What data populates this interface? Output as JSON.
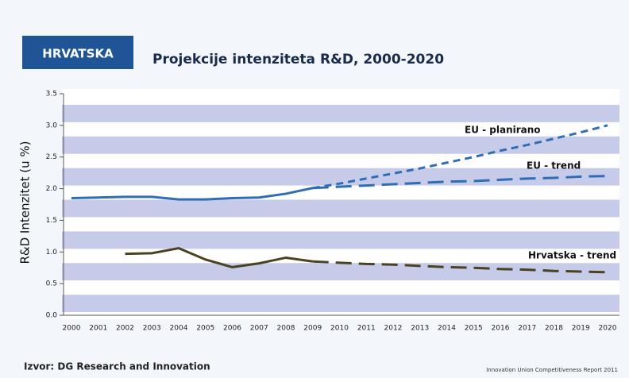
{
  "chart_data": {
    "type": "line",
    "header": "HRVATSKA",
    "title": "Projekcije intenziteta R&D, 2000-2020",
    "y_label": "R&D Intenzitet (u %)",
    "source": "Izvor: DG Research and Innovation",
    "credit": "Innovation Union Competitiveness Report 2011",
    "categories": [
      "2000",
      "2001",
      "2002",
      "2003",
      "2004",
      "2005",
      "2006",
      "2007",
      "2008",
      "2009",
      "2010",
      "2011",
      "2012",
      "2013",
      "2014",
      "2015",
      "2016",
      "2017",
      "2018",
      "2019",
      "2020"
    ],
    "ylim": [
      0,
      3.5
    ],
    "yticks": [
      {
        "value": 0,
        "label": "0.0"
      },
      0.5,
      {
        "value": 1,
        "label": "1.0"
      },
      1.5,
      {
        "value": 2,
        "label": "2.0"
      },
      2.5,
      {
        "value": 3,
        "label": "3.0"
      },
      3.5
    ],
    "series": [
      {
        "color": "#2f6db5",
        "style": "solid",
        "values": [
          1.85,
          1.86,
          1.87,
          1.87,
          1.83,
          1.83,
          1.85,
          1.86,
          1.92,
          2.01,
          null,
          null,
          null,
          null,
          null,
          null,
          null,
          null,
          null,
          null,
          null
        ]
      },
      {
        "name": "EU - planirano",
        "color": "#2f6db5",
        "style": "dashed",
        "values": [
          null,
          null,
          null,
          null,
          null,
          null,
          null,
          null,
          null,
          2.01,
          2.08,
          2.16,
          2.24,
          2.32,
          2.41,
          2.5,
          2.6,
          2.69,
          2.79,
          2.89,
          3.0
        ]
      },
      {
        "name": "EU - trend",
        "color": "#2f6db5",
        "style": "dashed",
        "values": [
          null,
          null,
          null,
          null,
          null,
          null,
          null,
          null,
          null,
          2.01,
          2.03,
          2.05,
          2.07,
          2.09,
          2.11,
          2.12,
          2.14,
          2.16,
          2.17,
          2.19,
          2.2
        ]
      },
      {
        "color": "#4a4220",
        "style": "solid",
        "values": [
          null,
          null,
          0.97,
          0.98,
          1.06,
          0.88,
          0.76,
          0.82,
          0.91,
          0.85,
          null,
          null,
          null,
          null,
          null,
          null,
          null,
          null,
          null,
          null,
          null
        ]
      },
      {
        "name": "Hrvatska - trend",
        "color": "#4a4220",
        "style": "dashed",
        "values": [
          null,
          null,
          null,
          null,
          null,
          null,
          null,
          null,
          null,
          0.85,
          0.83,
          0.81,
          0.8,
          0.78,
          0.76,
          0.75,
          0.73,
          0.72,
          0.7,
          0.69,
          0.68
        ]
      }
    ]
  }
}
